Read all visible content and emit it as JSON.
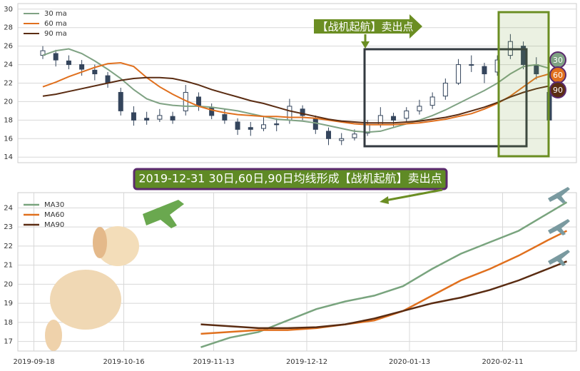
{
  "chart_data": [
    {
      "type": "candlestick",
      "color": "#34455c",
      "ylim": [
        13.4,
        30.6
      ],
      "yticks": [
        14,
        16,
        18,
        20,
        22,
        24,
        26,
        28,
        30
      ],
      "grid": true,
      "annotation": "【战机起航】卖出点",
      "candles": [
        [
          25,
          26,
          24.6,
          25.5
        ],
        [
          25.2,
          25.6,
          23.8,
          24.5
        ],
        [
          24.4,
          25,
          23.5,
          24
        ],
        [
          24,
          24.5,
          22.8,
          23.5
        ],
        [
          23.4,
          24,
          22.3,
          23
        ],
        [
          22.8,
          23.2,
          21.5,
          22
        ],
        [
          21,
          21.5,
          18.5,
          19
        ],
        [
          18.8,
          19.5,
          17.4,
          18
        ],
        [
          18.2,
          18.9,
          17.5,
          18
        ],
        [
          18.1,
          19.2,
          17.8,
          18.5
        ],
        [
          18.4,
          18.9,
          17.6,
          18
        ],
        [
          19,
          21.8,
          18.5,
          21
        ],
        [
          20.5,
          21,
          19,
          19.5
        ],
        [
          19.4,
          19.8,
          18.1,
          18.5
        ],
        [
          18.6,
          19.2,
          17.6,
          18
        ],
        [
          17.8,
          18.2,
          16.4,
          17
        ],
        [
          17.2,
          17.8,
          16.3,
          17
        ],
        [
          17.1,
          18.3,
          16.8,
          17.5
        ],
        [
          17.6,
          18.2,
          16.8,
          17.5
        ],
        [
          18,
          20.3,
          17.6,
          19.5
        ],
        [
          19.2,
          19.6,
          18,
          18.5
        ],
        [
          18.2,
          18.5,
          16.5,
          17
        ],
        [
          16.8,
          17.2,
          15.3,
          16
        ],
        [
          15.8,
          16.6,
          15.3,
          16
        ],
        [
          16.1,
          17,
          15.8,
          16.5
        ],
        [
          16.6,
          18,
          16.3,
          17.5
        ],
        [
          17.5,
          19.4,
          17.2,
          18.5
        ],
        [
          18.4,
          18.8,
          17.3,
          18
        ],
        [
          18.2,
          19.4,
          17.8,
          19
        ],
        [
          19,
          20.2,
          18.6,
          19.5
        ],
        [
          19.6,
          21,
          19.2,
          20.5
        ],
        [
          20.6,
          22.5,
          20.2,
          22
        ],
        [
          22,
          24.6,
          21.8,
          24
        ],
        [
          24,
          25,
          23.2,
          24
        ],
        [
          23.8,
          24.2,
          22,
          23
        ],
        [
          23.2,
          25,
          22.8,
          24.5
        ],
        [
          25,
          27.3,
          24.6,
          26.5
        ],
        [
          26,
          26.5,
          23.5,
          24
        ],
        [
          24,
          24.8,
          22.4,
          23
        ],
        [
          21,
          22,
          16.8,
          18
        ]
      ],
      "series": [
        {
          "name": "30 ma",
          "badge": "30",
          "color": "#7fa283",
          "values": [
            25,
            25.5,
            25.7,
            25.2,
            24.4,
            23.5,
            22.5,
            21.3,
            20.3,
            19.8,
            19.6,
            19.5,
            19.5,
            19.4,
            19.2,
            19,
            18.7,
            18.4,
            18.1,
            18,
            17.9,
            17.7,
            17.4,
            17.1,
            16.8,
            16.7,
            16.8,
            17.2,
            17.6,
            18,
            18.5,
            19.1,
            19.8,
            20.5,
            21.2,
            22,
            23,
            23.8,
            24,
            23.6
          ]
        },
        {
          "name": "60 ma",
          "badge": "60",
          "color": "#e0701e",
          "values": [
            21.6,
            22.1,
            22.7,
            23.2,
            23.7,
            24.1,
            24.2,
            23.8,
            22.6,
            21.6,
            20.8,
            20.1,
            19.5,
            19.1,
            18.8,
            18.6,
            18.5,
            18.4,
            18.4,
            18.3,
            18.3,
            18.2,
            18,
            17.8,
            17.6,
            17.5,
            17.5,
            17.5,
            17.6,
            17.7,
            17.9,
            18.1,
            18.4,
            18.7,
            19.2,
            19.8,
            20.6,
            21.6,
            22.6,
            23
          ]
        },
        {
          "name": "90 ma",
          "badge": "90",
          "color": "#5a2c12",
          "values": [
            20.6,
            20.8,
            21.1,
            21.4,
            21.7,
            22,
            22.3,
            22.5,
            22.6,
            22.6,
            22.5,
            22.2,
            21.8,
            21.3,
            20.9,
            20.5,
            20.1,
            19.8,
            19.4,
            19,
            18.7,
            18.4,
            18.1,
            17.9,
            17.8,
            17.7,
            17.7,
            17.7,
            17.8,
            17.9,
            18.1,
            18.3,
            18.6,
            19,
            19.4,
            19.9,
            20.5,
            21,
            21.4,
            21.7
          ]
        }
      ]
    },
    {
      "type": "line",
      "title": "2019-12-31 30日,60日,90日均线形成【战机起航】卖出点",
      "xlim": [
        "2019-09-13",
        "2020-03-05"
      ],
      "xticks": [
        "2019-09-18",
        "2019-10-16",
        "2019-11-13",
        "2019-12-12",
        "2020-01-13",
        "2020-02-11"
      ],
      "ylim": [
        16.5,
        24.8
      ],
      "yticks": [
        17,
        18,
        19,
        20,
        21,
        22,
        23,
        24
      ],
      "grid": true,
      "x": [
        "2019-11-09",
        "2019-11-18",
        "2019-11-27",
        "2019-12-06",
        "2019-12-15",
        "2019-12-24",
        "2020-01-02",
        "2020-01-11",
        "2020-01-20",
        "2020-01-29",
        "2020-02-07",
        "2020-02-16",
        "2020-02-25",
        "2020-03-02"
      ],
      "series": [
        {
          "name": "MA30",
          "color": "#79a47e",
          "values": [
            16.7,
            17.2,
            17.5,
            18.1,
            18.7,
            19.1,
            19.4,
            19.9,
            20.8,
            21.6,
            22.2,
            22.8,
            23.7,
            24.3
          ]
        },
        {
          "name": "MA60",
          "color": "#e0701e",
          "values": [
            17.4,
            17.5,
            17.6,
            17.6,
            17.7,
            17.9,
            18.1,
            18.6,
            19.4,
            20.2,
            20.8,
            21.5,
            22.3,
            22.8
          ]
        },
        {
          "name": "MA90",
          "color": "#5a2c12",
          "values": [
            17.9,
            17.8,
            17.7,
            17.7,
            17.75,
            17.9,
            18.2,
            18.6,
            19.0,
            19.3,
            19.7,
            20.2,
            20.8,
            21.2
          ]
        }
      ]
    }
  ]
}
